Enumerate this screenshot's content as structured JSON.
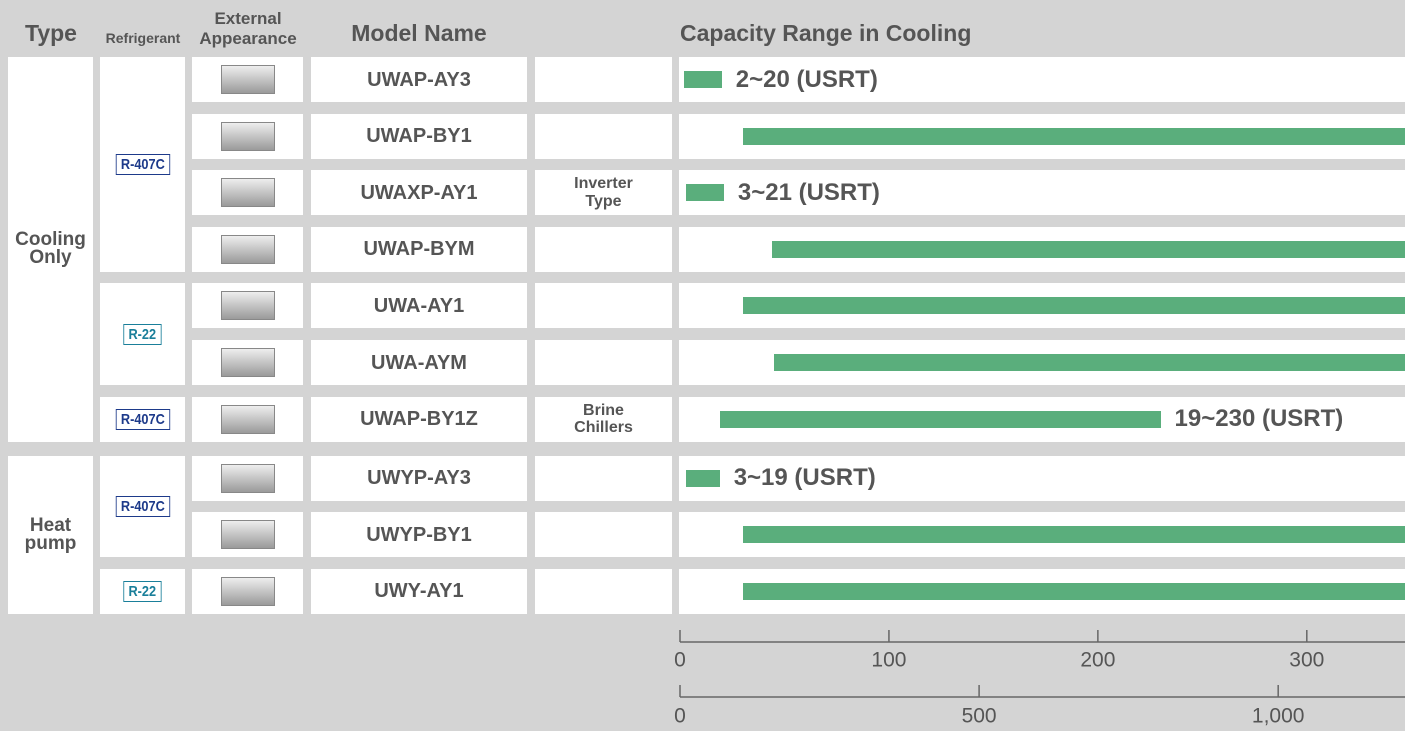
{
  "header": {
    "type": "Type",
    "refrigerant": "Refrigerant",
    "appearance": "External Appearance",
    "model": "Model Name",
    "capacity": "Capacity Range in Cooling"
  },
  "types": [
    {
      "label": "Cooling Only",
      "refrigerants": [
        {
          "label": "R-407C",
          "color": "#1d3a8a",
          "rows": [
            {
              "model": "UWAP-AY3"
            },
            {
              "model": "UWAP-BY1"
            },
            {
              "model": "UWAXP-AY1",
              "note": "Inverter Type"
            },
            {
              "model": "UWAP-BYM"
            }
          ]
        },
        {
          "label": "R-22",
          "color": "#1a7f9a",
          "rows": [
            {
              "model": "UWA-AY1"
            },
            {
              "model": "UWA-AYM"
            }
          ]
        },
        {
          "label": "R-407C",
          "color": "#1d3a8a",
          "rows": [
            {
              "model": "UWAP-BY1Z",
              "note": "Brine Chillers"
            }
          ]
        }
      ]
    },
    {
      "label": "Heat pump",
      "refrigerants": [
        {
          "label": "R-407C",
          "color": "#1d3a8a",
          "rows": [
            {
              "model": "UWYP-AY3"
            },
            {
              "model": "UWYP-BY1"
            }
          ]
        },
        {
          "label": "R-22",
          "color": "#1a7f9a",
          "rows": [
            {
              "model": "UWY-AY1"
            }
          ]
        }
      ]
    }
  ],
  "chart_data": {
    "type": "range-bar",
    "color": "#5aae7c",
    "low": [
      2,
      30,
      3,
      44,
      30,
      45,
      19,
      3,
      30,
      30
    ],
    "high": [
      20,
      null,
      21,
      null,
      null,
      null,
      230,
      19,
      null,
      null
    ],
    "value_labels": [
      "2~20 (USRT)",
      null,
      "3~21 (USRT)",
      null,
      null,
      null,
      "19~230 (USRT)",
      "3~19 (USRT)",
      null,
      null
    ],
    "xlim": [
      0,
      347
    ],
    "xticks": [
      0,
      100,
      200,
      300
    ],
    "x2lim": [
      0,
      1212
    ],
    "x2ticks": [
      0,
      500,
      {
        "value": 1000,
        "label": "1,000"
      }
    ]
  }
}
